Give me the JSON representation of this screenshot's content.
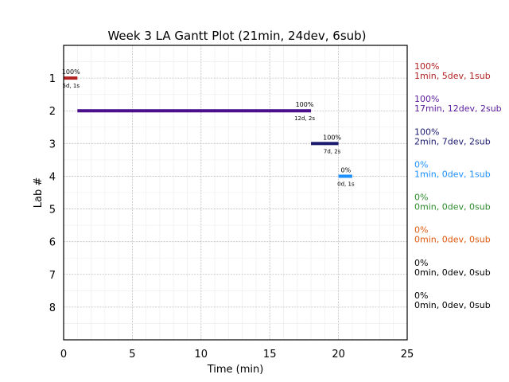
{
  "chart_data": {
    "type": "gantt",
    "title": "Week 3 LA Gantt Plot (21min, 24dev, 6sub)",
    "xlabel": "Time (min)",
    "ylabel": "Lab #",
    "xlim": [
      0,
      25
    ],
    "ylim": [
      9,
      0
    ],
    "xticks": [
      "0",
      "5",
      "10",
      "15",
      "20",
      "25"
    ],
    "yticks": [
      "1",
      "2",
      "3",
      "4",
      "5",
      "6",
      "7",
      "8"
    ],
    "grid": true,
    "bars": [
      {
        "lab": 1,
        "start": 0,
        "end": 1,
        "pct": "100%",
        "detail": "5d, 1s",
        "color": "#b22222"
      },
      {
        "lab": 2,
        "start": 1,
        "end": 18,
        "pct": "100%",
        "detail": "12d, 2s",
        "color": "#4b0f8c"
      },
      {
        "lab": 3,
        "start": 18,
        "end": 20,
        "pct": "100%",
        "detail": "7d, 2s",
        "color": "#1a1a6e"
      },
      {
        "lab": 4,
        "start": 20,
        "end": 21,
        "pct": "0%",
        "detail": "0d, 1s",
        "color": "#1e90ff"
      }
    ],
    "side_labels": [
      {
        "lab": 1,
        "pct": "100%",
        "summary": "1min, 5dev, 1sub",
        "color": "#b22222"
      },
      {
        "lab": 2,
        "pct": "100%",
        "summary": "17min, 12dev, 2sub",
        "color": "#5a1a9a"
      },
      {
        "lab": 3,
        "pct": "100%",
        "summary": "2min, 7dev, 2sub",
        "color": "#1a1a6e"
      },
      {
        "lab": 4,
        "pct": "0%",
        "summary": "1min, 0dev, 1sub",
        "color": "#1e90ff"
      },
      {
        "lab": 5,
        "pct": "0%",
        "summary": "0min, 0dev, 0sub",
        "color": "#2e8b2e"
      },
      {
        "lab": 6,
        "pct": "0%",
        "summary": "0min, 0dev, 0sub",
        "color": "#e05a10"
      },
      {
        "lab": 7,
        "pct": "0%",
        "summary": "0min, 0dev, 0sub",
        "color": "#000000"
      },
      {
        "lab": 8,
        "pct": "0%",
        "summary": "0min, 0dev, 0sub",
        "color": "#000000"
      }
    ]
  }
}
